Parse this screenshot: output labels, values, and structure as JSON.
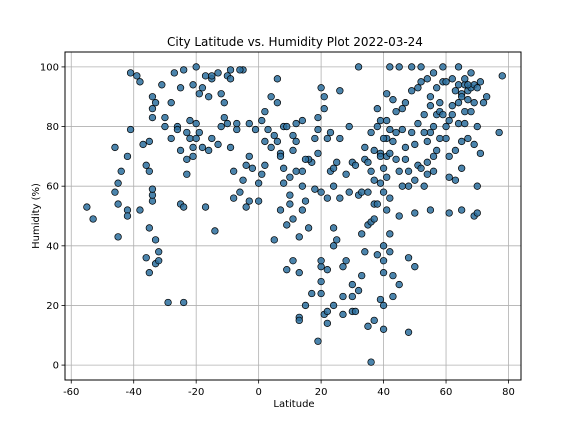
{
  "chart_data": {
    "type": "scatter",
    "title": "City Latitude vs. Humidity Plot 2022-03-24",
    "xlabel": "Latitude",
    "ylabel": "Humidity (%)",
    "xlim": [
      -62,
      84
    ],
    "ylim": [
      -5,
      105
    ],
    "xticks": [
      -60,
      -40,
      -20,
      0,
      20,
      40,
      60,
      80
    ],
    "yticks": [
      0,
      20,
      40,
      60,
      80,
      100
    ],
    "grid": true,
    "marker_color": "#2b6f9e",
    "marker_edge": "#000000",
    "points": [
      [
        -55,
        53
      ],
      [
        -53,
        49
      ],
      [
        -46,
        58
      ],
      [
        -45,
        54
      ],
      [
        -45,
        61
      ],
      [
        -46,
        73
      ],
      [
        -44,
        65
      ],
      [
        -45,
        43
      ],
      [
        -42,
        52
      ],
      [
        -42,
        50
      ],
      [
        -42,
        70
      ],
      [
        -41,
        79
      ],
      [
        -41,
        98
      ],
      [
        -39,
        97
      ],
      [
        -38,
        95
      ],
      [
        -38,
        52
      ],
      [
        -37,
        74
      ],
      [
        -36,
        67
      ],
      [
        -35,
        65
      ],
      [
        -35,
        75
      ],
      [
        -36,
        36
      ],
      [
        -35,
        31
      ],
      [
        -35,
        46
      ],
      [
        -34,
        55
      ],
      [
        -34,
        57
      ],
      [
        -34,
        59
      ],
      [
        -34,
        90
      ],
      [
        -34,
        86
      ],
      [
        -34,
        83
      ],
      [
        -33,
        34
      ],
      [
        -32,
        35
      ],
      [
        -32,
        38
      ],
      [
        -33,
        42
      ],
      [
        -33,
        88
      ],
      [
        -31,
        94
      ],
      [
        -30,
        83
      ],
      [
        -30,
        80
      ],
      [
        -29,
        21
      ],
      [
        -28,
        88
      ],
      [
        -27,
        98
      ],
      [
        -26,
        80
      ],
      [
        -25,
        54
      ],
      [
        -25,
        93
      ],
      [
        -24,
        99
      ],
      [
        -24,
        21
      ],
      [
        -24,
        53
      ],
      [
        -23,
        64
      ],
      [
        -23,
        78
      ],
      [
        -22,
        76
      ],
      [
        -21,
        70
      ],
      [
        -21,
        73
      ],
      [
        -20,
        81
      ],
      [
        -20,
        100
      ],
      [
        -19,
        91
      ],
      [
        -18,
        93
      ],
      [
        -18,
        73
      ],
      [
        -17,
        53
      ],
      [
        -17,
        97
      ],
      [
        -16,
        90
      ],
      [
        -15,
        96
      ],
      [
        -15,
        97
      ],
      [
        -14,
        45
      ],
      [
        -13,
        98
      ],
      [
        -12,
        80
      ],
      [
        -11,
        83
      ],
      [
        -10,
        81
      ],
      [
        -10,
        97
      ],
      [
        -9,
        99
      ],
      [
        -8,
        65
      ],
      [
        -8,
        56
      ],
      [
        -7,
        79
      ],
      [
        -6,
        58
      ],
      [
        -5,
        62
      ],
      [
        -5,
        99
      ],
      [
        -4,
        53
      ],
      [
        -4,
        67
      ],
      [
        -3,
        81
      ],
      [
        -3,
        55
      ],
      [
        -2,
        66
      ],
      [
        -1,
        79
      ],
      [
        0,
        55
      ],
      [
        0,
        61
      ],
      [
        1,
        64
      ],
      [
        1,
        82
      ],
      [
        2,
        67
      ],
      [
        2,
        85
      ],
      [
        3,
        79
      ],
      [
        4,
        90
      ],
      [
        4,
        73
      ],
      [
        5,
        77
      ],
      [
        5,
        42
      ],
      [
        6,
        96
      ],
      [
        6,
        75
      ],
      [
        7,
        52
      ],
      [
        7,
        71
      ],
      [
        8,
        66
      ],
      [
        8,
        80
      ],
      [
        8,
        61
      ],
      [
        9,
        32
      ],
      [
        9,
        47
      ],
      [
        10,
        54
      ],
      [
        10,
        57
      ],
      [
        10,
        63
      ],
      [
        11,
        35
      ],
      [
        11,
        49
      ],
      [
        11,
        72
      ],
      [
        11,
        77
      ],
      [
        12,
        65
      ],
      [
        12,
        81
      ],
      [
        13,
        16
      ],
      [
        13,
        15
      ],
      [
        13,
        31
      ],
      [
        13,
        43
      ],
      [
        14,
        60
      ],
      [
        14,
        52
      ],
      [
        14,
        65
      ],
      [
        14,
        82
      ],
      [
        15,
        55
      ],
      [
        15,
        20
      ],
      [
        16,
        46
      ],
      [
        17,
        68
      ],
      [
        17,
        24
      ],
      [
        18,
        59
      ],
      [
        19,
        79
      ],
      [
        19,
        71
      ],
      [
        19,
        8
      ],
      [
        20,
        24
      ],
      [
        20,
        28
      ],
      [
        20,
        33
      ],
      [
        20,
        35
      ],
      [
        20,
        58
      ],
      [
        20,
        93
      ],
      [
        21,
        17
      ],
      [
        21,
        90
      ],
      [
        22,
        14
      ],
      [
        22,
        18
      ],
      [
        22,
        32
      ],
      [
        22,
        56
      ],
      [
        22,
        76
      ],
      [
        23,
        65
      ],
      [
        24,
        46
      ],
      [
        24,
        40
      ],
      [
        24,
        20
      ],
      [
        24,
        60
      ],
      [
        25,
        42
      ],
      [
        25,
        68
      ],
      [
        26,
        56
      ],
      [
        26,
        92
      ],
      [
        27,
        33
      ],
      [
        27,
        17
      ],
      [
        27,
        23
      ],
      [
        28,
        35
      ],
      [
        28,
        64
      ],
      [
        29,
        58
      ],
      [
        29,
        80
      ],
      [
        30,
        68
      ],
      [
        30,
        27
      ],
      [
        30,
        23
      ],
      [
        30,
        18
      ],
      [
        31,
        18
      ],
      [
        31,
        67
      ],
      [
        32,
        100
      ],
      [
        32,
        25
      ],
      [
        32,
        57
      ],
      [
        33,
        30
      ],
      [
        33,
        44
      ],
      [
        33,
        58
      ],
      [
        34,
        38
      ],
      [
        34,
        69
      ],
      [
        35,
        47
      ],
      [
        35,
        13
      ],
      [
        35,
        58
      ],
      [
        36,
        48
      ],
      [
        36,
        65
      ],
      [
        36,
        1
      ],
      [
        37,
        15
      ],
      [
        37,
        49
      ],
      [
        37,
        54
      ],
      [
        37,
        72
      ],
      [
        38,
        37
      ],
      [
        38,
        54
      ],
      [
        38,
        80
      ],
      [
        39,
        22
      ],
      [
        39,
        71
      ],
      [
        39,
        82
      ],
      [
        40,
        12
      ],
      [
        40,
        20
      ],
      [
        40,
        31
      ],
      [
        40,
        35
      ],
      [
        40,
        40
      ],
      [
        40,
        58
      ],
      [
        41,
        52
      ],
      [
        41,
        63
      ],
      [
        41,
        76
      ],
      [
        41,
        91
      ],
      [
        42,
        56
      ],
      [
        42,
        100
      ],
      [
        42,
        44
      ],
      [
        42,
        38
      ],
      [
        42,
        79
      ],
      [
        43,
        23
      ],
      [
        43,
        30
      ],
      [
        43,
        75
      ],
      [
        44,
        85
      ],
      [
        45,
        27
      ],
      [
        45,
        50
      ],
      [
        45,
        65
      ],
      [
        45,
        100
      ],
      [
        46,
        79
      ],
      [
        46,
        60
      ],
      [
        47,
        73
      ],
      [
        47,
        88
      ],
      [
        48,
        11
      ],
      [
        48,
        36
      ],
      [
        48,
        60
      ],
      [
        49,
        92
      ],
      [
        49,
        100
      ],
      [
        50,
        33
      ],
      [
        50,
        51
      ],
      [
        50,
        74
      ],
      [
        51,
        67
      ],
      [
        51,
        81
      ],
      [
        52,
        95
      ],
      [
        52,
        100
      ],
      [
        53,
        60
      ],
      [
        53,
        84
      ],
      [
        54,
        68
      ],
      [
        54,
        75
      ],
      [
        54,
        96
      ],
      [
        55,
        52
      ],
      [
        55,
        78
      ],
      [
        55,
        90
      ],
      [
        56,
        98
      ],
      [
        56,
        65
      ],
      [
        57,
        72
      ],
      [
        57,
        84
      ],
      [
        58,
        88
      ],
      [
        59,
        95
      ],
      [
        59,
        100
      ],
      [
        60,
        76
      ],
      [
        60,
        80
      ],
      [
        61,
        51
      ],
      [
        61,
        63
      ],
      [
        61,
        70
      ],
      [
        62,
        87
      ],
      [
        62,
        96
      ],
      [
        63,
        62
      ],
      [
        63,
        72
      ],
      [
        64,
        81
      ],
      [
        64,
        100
      ],
      [
        65,
        52
      ],
      [
        65,
        75
      ],
      [
        65,
        66
      ],
      [
        66,
        85
      ],
      [
        66,
        94
      ],
      [
        67,
        89
      ],
      [
        67,
        92
      ],
      [
        67,
        76
      ],
      [
        68,
        98
      ],
      [
        68,
        93
      ],
      [
        69,
        74
      ],
      [
        69,
        50
      ],
      [
        69,
        88
      ],
      [
        70,
        60
      ],
      [
        70,
        51
      ],
      [
        70,
        80
      ],
      [
        71,
        95
      ],
      [
        71,
        71
      ],
      [
        72,
        88
      ],
      [
        73,
        90
      ],
      [
        77,
        78
      ],
      [
        78,
        97
      ],
      [
        -20,
        76
      ],
      [
        -19,
        78
      ],
      [
        -16,
        72
      ],
      [
        -15,
        76
      ],
      [
        -12,
        91
      ],
      [
        -11,
        88
      ],
      [
        -9,
        96
      ],
      [
        -6,
        99
      ],
      [
        2,
        75
      ],
      [
        6,
        88
      ],
      [
        9,
        80
      ],
      [
        12,
        75
      ],
      [
        16,
        69
      ],
      [
        18,
        76
      ],
      [
        21,
        86
      ],
      [
        23,
        78
      ],
      [
        35,
        68
      ],
      [
        36,
        78
      ],
      [
        38,
        86
      ],
      [
        39,
        70
      ],
      [
        40,
        76
      ],
      [
        41,
        82
      ],
      [
        43,
        89
      ],
      [
        44,
        78
      ],
      [
        46,
        86
      ],
      [
        47,
        69
      ],
      [
        49,
        78
      ],
      [
        51,
        93
      ],
      [
        53,
        78
      ],
      [
        55,
        87
      ],
      [
        56,
        80
      ],
      [
        57,
        93
      ],
      [
        58,
        76
      ],
      [
        60,
        95
      ],
      [
        62,
        84
      ],
      [
        63,
        92
      ],
      [
        64,
        88
      ],
      [
        65,
        91
      ],
      [
        66,
        81
      ],
      [
        68,
        85
      ],
      [
        69,
        94
      ],
      [
        70,
        93
      ],
      [
        -28,
        76
      ],
      [
        -26,
        79
      ],
      [
        -25,
        72
      ],
      [
        -23,
        69
      ],
      [
        -22,
        82
      ],
      [
        -21,
        94
      ],
      [
        -13,
        74
      ],
      [
        -9,
        73
      ],
      [
        -7,
        81
      ],
      [
        -3,
        70
      ],
      [
        7,
        70
      ],
      [
        15,
        69
      ],
      [
        19,
        83
      ],
      [
        24,
        66
      ],
      [
        26,
        76
      ],
      [
        34,
        73
      ],
      [
        37,
        62
      ],
      [
        39,
        61
      ],
      [
        40,
        66
      ],
      [
        41,
        70
      ],
      [
        42,
        71
      ],
      [
        44,
        69
      ],
      [
        48,
        65
      ],
      [
        50,
        62
      ],
      [
        52,
        66
      ],
      [
        54,
        64
      ],
      [
        56,
        70
      ],
      [
        58,
        85
      ],
      [
        59,
        84
      ],
      [
        61,
        82
      ],
      [
        64,
        94
      ],
      [
        65,
        90
      ],
      [
        66,
        96
      ],
      [
        67,
        94
      ]
    ]
  }
}
